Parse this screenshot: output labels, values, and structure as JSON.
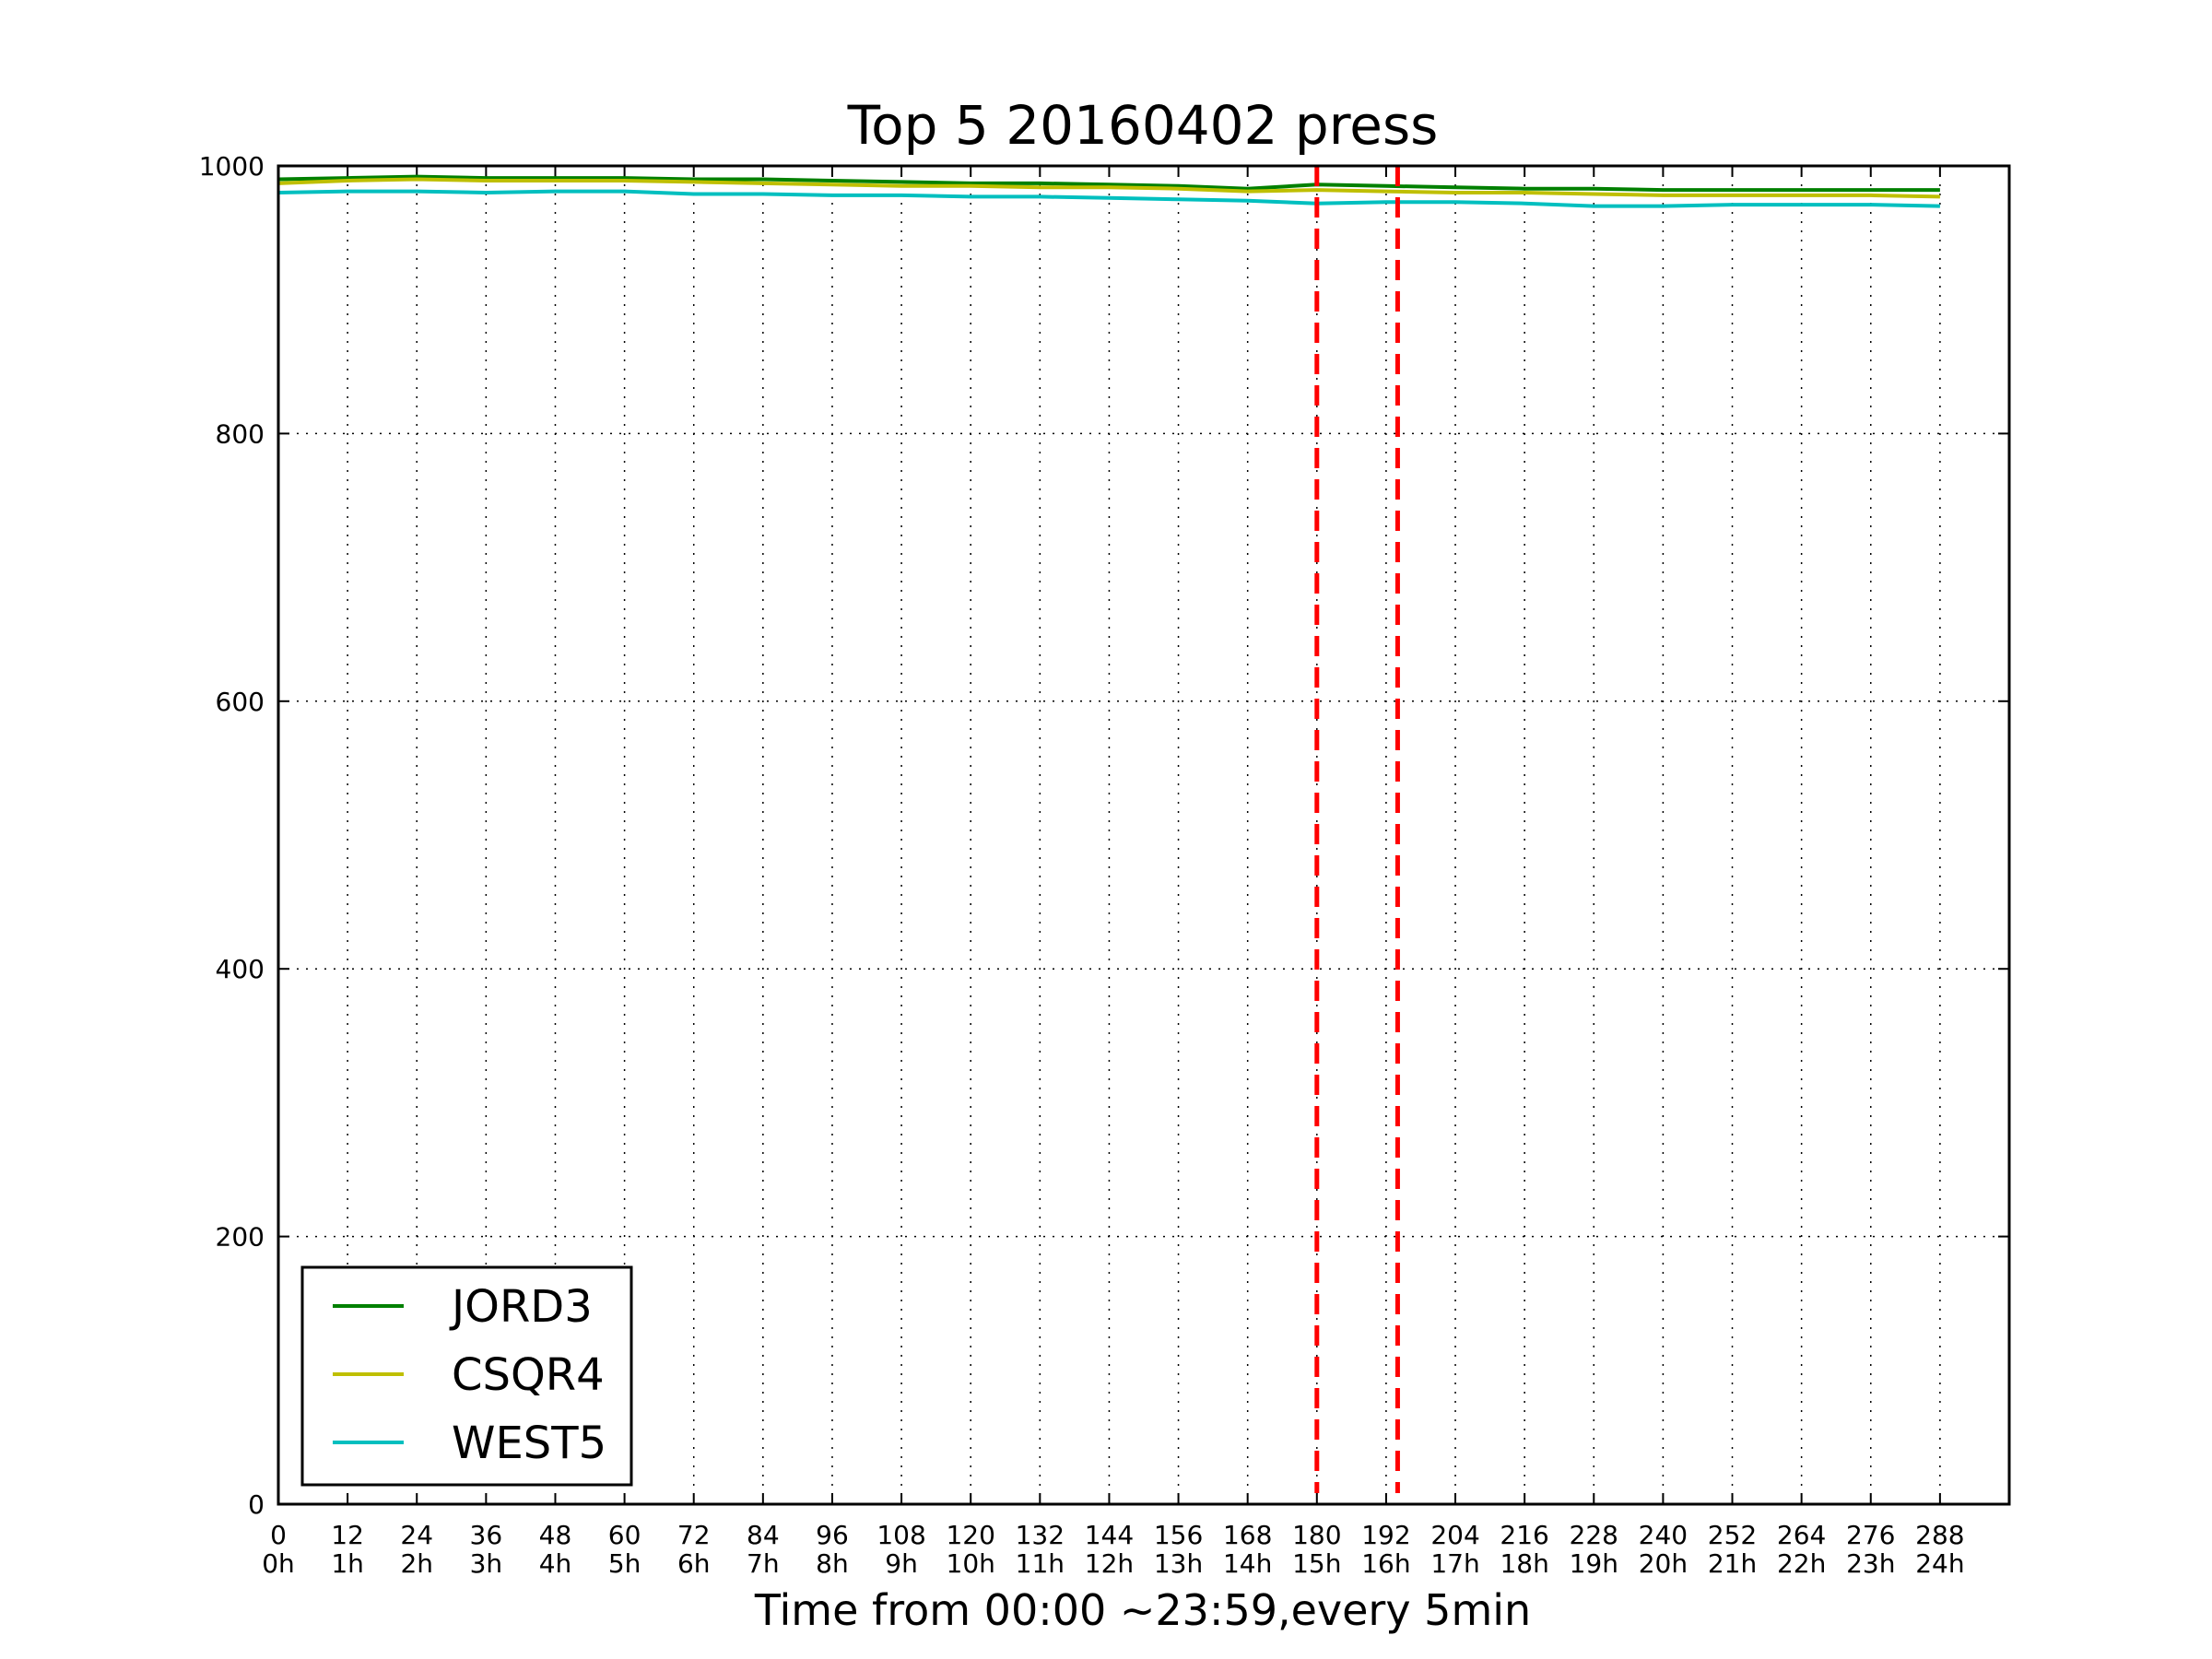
{
  "chart_data": {
    "type": "line",
    "title": "Top 5 20160402 press",
    "xlabel": "Time from 00:00 ~23:59,every 5min",
    "ylabel": "",
    "xlim": [
      0,
      300
    ],
    "ylim": [
      0,
      1000
    ],
    "grid": true,
    "legend_position": "lower-left",
    "x_ticks": [
      {
        "value": 0,
        "label": "0",
        "hour": "0h"
      },
      {
        "value": 12,
        "label": "12",
        "hour": "1h"
      },
      {
        "value": 24,
        "label": "24",
        "hour": "2h"
      },
      {
        "value": 36,
        "label": "36",
        "hour": "3h"
      },
      {
        "value": 48,
        "label": "48",
        "hour": "4h"
      },
      {
        "value": 60,
        "label": "60",
        "hour": "5h"
      },
      {
        "value": 72,
        "label": "72",
        "hour": "6h"
      },
      {
        "value": 84,
        "label": "84",
        "hour": "7h"
      },
      {
        "value": 96,
        "label": "96",
        "hour": "8h"
      },
      {
        "value": 108,
        "label": "108",
        "hour": "9h"
      },
      {
        "value": 120,
        "label": "120",
        "hour": "10h"
      },
      {
        "value": 132,
        "label": "132",
        "hour": "11h"
      },
      {
        "value": 144,
        "label": "144",
        "hour": "12h"
      },
      {
        "value": 156,
        "label": "156",
        "hour": "13h"
      },
      {
        "value": 168,
        "label": "168",
        "hour": "14h"
      },
      {
        "value": 180,
        "label": "180",
        "hour": "15h"
      },
      {
        "value": 192,
        "label": "192",
        "hour": "16h"
      },
      {
        "value": 204,
        "label": "204",
        "hour": "17h"
      },
      {
        "value": 216,
        "label": "216",
        "hour": "18h"
      },
      {
        "value": 228,
        "label": "228",
        "hour": "19h"
      },
      {
        "value": 240,
        "label": "240",
        "hour": "20h"
      },
      {
        "value": 252,
        "label": "252",
        "hour": "21h"
      },
      {
        "value": 264,
        "label": "264",
        "hour": "22h"
      },
      {
        "value": 276,
        "label": "276",
        "hour": "23h"
      },
      {
        "value": 288,
        "label": "288",
        "hour": "24h"
      }
    ],
    "y_ticks": [
      {
        "value": 0,
        "label": "0"
      },
      {
        "value": 200,
        "label": "200"
      },
      {
        "value": 400,
        "label": "400"
      },
      {
        "value": 600,
        "label": "600"
      },
      {
        "value": 800,
        "label": "800"
      },
      {
        "value": 1000,
        "label": "1000"
      }
    ],
    "x": [
      0,
      12,
      24,
      36,
      48,
      60,
      72,
      84,
      96,
      108,
      120,
      132,
      144,
      156,
      168,
      180,
      192,
      204,
      216,
      228,
      240,
      252,
      264,
      276,
      288
    ],
    "series": [
      {
        "name": "JORD3",
        "color": "#008000",
        "values": [
          990,
          991,
          992,
          991,
          991,
          991,
          990,
          990,
          989,
          988,
          987,
          987,
          986,
          985,
          983,
          986,
          985,
          984,
          983,
          983,
          982,
          982,
          982,
          982,
          982
        ]
      },
      {
        "name": "CSQR4",
        "color": "#bfbf00",
        "values": [
          987,
          989,
          990,
          989,
          989,
          989,
          988,
          987,
          986,
          985,
          985,
          984,
          984,
          983,
          981,
          982,
          981,
          980,
          980,
          979,
          978,
          978,
          978,
          978,
          977
        ]
      },
      {
        "name": "WEST5",
        "color": "#00bfbf",
        "values": [
          980,
          981,
          981,
          980,
          981,
          981,
          979,
          979,
          978,
          978,
          977,
          977,
          976,
          975,
          974,
          972,
          973,
          973,
          972,
          970,
          970,
          971,
          971,
          971,
          970
        ]
      }
    ],
    "vertical_lines": [
      {
        "x": 180,
        "color": "#ff0000",
        "style": "dashed"
      },
      {
        "x": 194,
        "color": "#ff0000",
        "style": "dashed"
      }
    ]
  }
}
